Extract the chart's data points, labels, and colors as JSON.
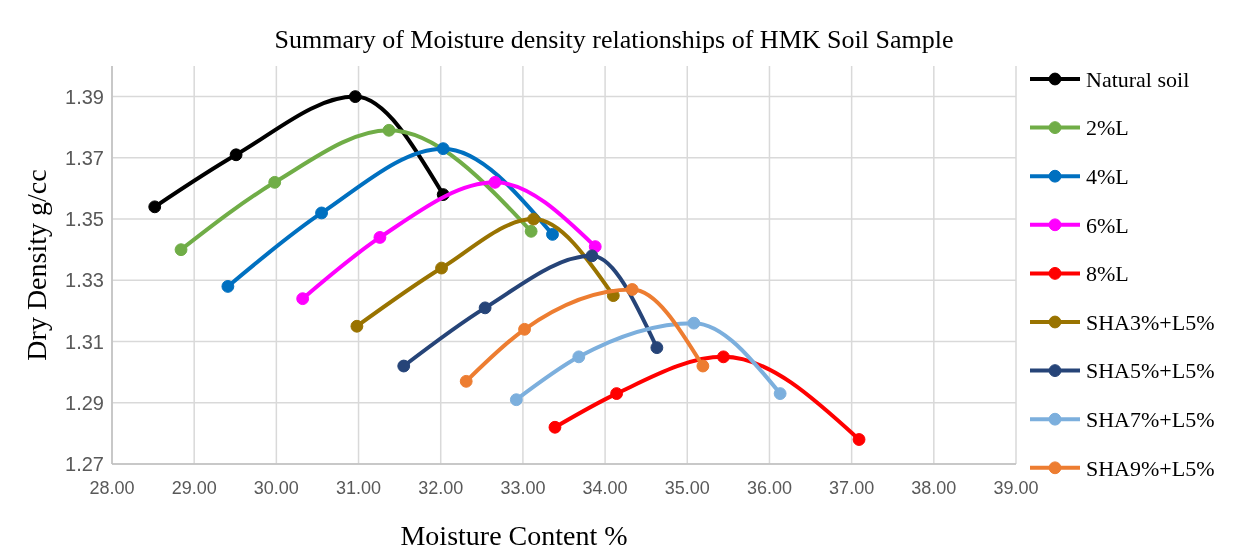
{
  "chart_data": {
    "type": "line",
    "title": "Summary of Moisture density relationships of HMK Soil Sample",
    "xlabel": "Moisture Content %",
    "ylabel": "Dry Density g/cc",
    "xlim": [
      28,
      39
    ],
    "xticks": [
      {
        "value": 28,
        "label": "28.00"
      },
      {
        "value": 29,
        "label": "29.00"
      },
      {
        "value": 30,
        "label": "30.00"
      },
      {
        "value": 31,
        "label": "31.00"
      },
      {
        "value": 32,
        "label": "32.00"
      },
      {
        "value": 33,
        "label": "33.00"
      },
      {
        "value": 34,
        "label": "34.00"
      },
      {
        "value": 35,
        "label": "35.00"
      },
      {
        "value": 36,
        "label": "36.00"
      },
      {
        "value": 37,
        "label": "37.00"
      },
      {
        "value": 38,
        "label": "38.00"
      },
      {
        "value": 39,
        "label": "39.00"
      }
    ],
    "ylim": [
      1.27,
      1.4
    ],
    "yticks": [
      1.27,
      1.29,
      1.31,
      1.33,
      1.35,
      1.37,
      1.39
    ],
    "grid": true,
    "legend": "right",
    "marker": "circle",
    "line_style": "solid",
    "series": [
      {
        "name": "Natural soil",
        "color": "#000000",
        "x": [
          28.52,
          29.51,
          30.96,
          32.03
        ],
        "values": [
          1.354,
          1.371,
          1.39,
          1.358
        ]
      },
      {
        "name": "2%L",
        "color": "#70ad47",
        "x": [
          28.84,
          29.98,
          31.37,
          33.1
        ],
        "values": [
          1.34,
          1.362,
          1.379,
          1.346
        ]
      },
      {
        "name": "4%L",
        "color": "#0070c0",
        "x": [
          29.41,
          30.55,
          32.03,
          33.36
        ],
        "values": [
          1.328,
          1.352,
          1.373,
          1.345
        ]
      },
      {
        "name": "6%L",
        "color": "#ff00ff",
        "x": [
          30.32,
          31.26,
          32.66,
          33.88
        ],
        "values": [
          1.324,
          1.344,
          1.362,
          1.341
        ]
      },
      {
        "name": "8%L",
        "color": "#ff0000",
        "x": [
          33.39,
          34.14,
          35.44,
          37.09
        ],
        "values": [
          1.282,
          1.293,
          1.305,
          1.278
        ]
      },
      {
        "name": "SHA3%+L5%",
        "color": "#997300",
        "x": [
          30.98,
          32.01,
          33.13,
          34.1
        ],
        "values": [
          1.315,
          1.334,
          1.35,
          1.325
        ]
      },
      {
        "name": "SHA5%+L5%",
        "color": "#264478",
        "x": [
          31.55,
          32.54,
          33.84,
          34.63
        ],
        "values": [
          1.302,
          1.321,
          1.338,
          1.308
        ]
      },
      {
        "name": "SHA7%+L5%",
        "color": "#7cafdd",
        "x": [
          32.92,
          33.68,
          35.08,
          36.13
        ],
        "values": [
          1.291,
          1.305,
          1.316,
          1.293
        ]
      },
      {
        "name": "SHA9%+L5%",
        "color": "#ed7d31",
        "x": [
          32.31,
          33.02,
          34.33,
          35.19
        ],
        "values": [
          1.297,
          1.314,
          1.327,
          1.302
        ]
      }
    ]
  }
}
